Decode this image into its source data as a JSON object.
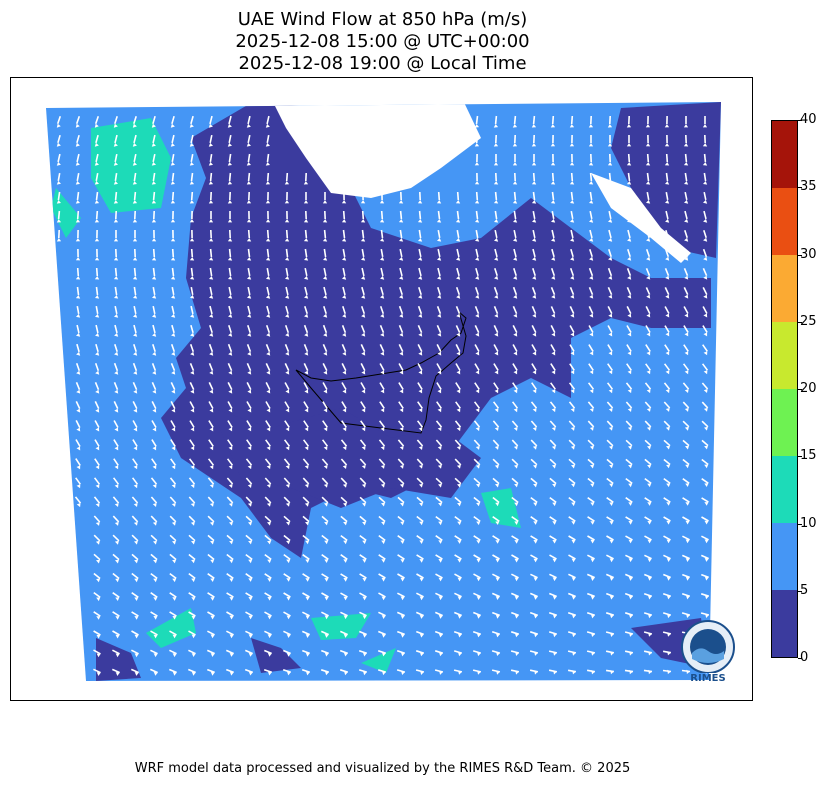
{
  "title": {
    "line1": "UAE Wind Flow at 850 hPa (m/s)",
    "line2": "2025-12-08 15:00 @ UTC+00:00",
    "line3": "2025-12-08 19:00 @ Local Time"
  },
  "colorbar": {
    "ticks": [
      "0",
      "5",
      "10",
      "15",
      "20",
      "25",
      "30",
      "35",
      "40"
    ],
    "colors": [
      "#3b3b9e",
      "#4596f5",
      "#1ddbb8",
      "#6ef252",
      "#c8e92e",
      "#fbaa33",
      "#ea4f12",
      "#a5140a"
    ]
  },
  "map": {
    "land_color": "#3b3b9e",
    "sea_color": "#4596f5",
    "highlight_color": "#1ddbb8",
    "wind_arrow_color": "#ffffff",
    "prevailing_wind": "south-westward (north-easterly flow)"
  },
  "logo": {
    "text": "RIMES"
  },
  "footer": "WRF model data processed and visualized by the RIMES R&D Team. © 2025"
}
